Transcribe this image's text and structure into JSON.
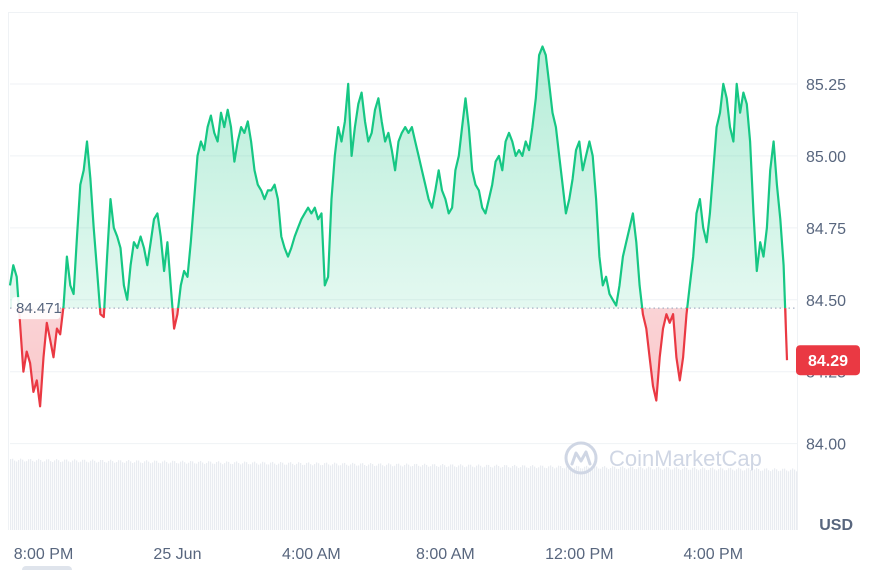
{
  "watermark": {
    "text": "CoinMarketCap",
    "icon": "coinmarketcap-logo-icon"
  },
  "chart_data": {
    "type": "line",
    "title": "",
    "xlabel": "",
    "ylabel": "",
    "unit_label": "USD",
    "yticks": [
      "84.00",
      "84.25",
      "84.50",
      "84.75",
      "85.00",
      "85.25"
    ],
    "ylim": [
      83.7,
      85.5
    ],
    "xlim": [
      0,
      23.5
    ],
    "x_tick_labels": [
      {
        "x": 1,
        "label": "8:00 PM"
      },
      {
        "x": 5,
        "label": "25 Jun"
      },
      {
        "x": 9,
        "label": "4:00 AM"
      },
      {
        "x": 13,
        "label": "8:00 AM"
      },
      {
        "x": 17,
        "label": "12:00 PM"
      },
      {
        "x": 21,
        "label": "4:00 PM"
      }
    ],
    "reference_price": 84.471,
    "reference_label": "84.471",
    "current_price": 84.29,
    "current_label": "84.29",
    "grid": true,
    "colors": {
      "up": "#16c784",
      "down": "#ea3943",
      "grid": "#eff2f5",
      "badge": "#ea3943"
    },
    "series": [
      {
        "values": [
          [
            0.0,
            84.55
          ],
          [
            0.1,
            84.62
          ],
          [
            0.2,
            84.58
          ],
          [
            0.3,
            84.42
          ],
          [
            0.4,
            84.25
          ],
          [
            0.5,
            84.32
          ],
          [
            0.6,
            84.28
          ],
          [
            0.7,
            84.18
          ],
          [
            0.8,
            84.22
          ],
          [
            0.9,
            84.13
          ],
          [
            1.0,
            84.3
          ],
          [
            1.1,
            84.42
          ],
          [
            1.2,
            84.36
          ],
          [
            1.3,
            84.3
          ],
          [
            1.4,
            84.4
          ],
          [
            1.5,
            84.38
          ],
          [
            1.6,
            84.48
          ],
          [
            1.7,
            84.65
          ],
          [
            1.8,
            84.55
          ],
          [
            1.9,
            84.52
          ],
          [
            2.0,
            84.72
          ],
          [
            2.1,
            84.9
          ],
          [
            2.2,
            84.95
          ],
          [
            2.3,
            85.05
          ],
          [
            2.4,
            84.92
          ],
          [
            2.5,
            84.75
          ],
          [
            2.6,
            84.6
          ],
          [
            2.7,
            84.45
          ],
          [
            2.8,
            84.44
          ],
          [
            2.9,
            84.65
          ],
          [
            3.0,
            84.85
          ],
          [
            3.1,
            84.75
          ],
          [
            3.2,
            84.72
          ],
          [
            3.3,
            84.68
          ],
          [
            3.4,
            84.55
          ],
          [
            3.5,
            84.5
          ],
          [
            3.6,
            84.62
          ],
          [
            3.7,
            84.7
          ],
          [
            3.8,
            84.68
          ],
          [
            3.9,
            84.72
          ],
          [
            4.0,
            84.68
          ],
          [
            4.1,
            84.62
          ],
          [
            4.2,
            84.7
          ],
          [
            4.3,
            84.78
          ],
          [
            4.4,
            84.8
          ],
          [
            4.5,
            84.72
          ],
          [
            4.6,
            84.6
          ],
          [
            4.7,
            84.7
          ],
          [
            4.8,
            84.55
          ],
          [
            4.9,
            84.4
          ],
          [
            5.0,
            84.45
          ],
          [
            5.1,
            84.55
          ],
          [
            5.2,
            84.6
          ],
          [
            5.3,
            84.58
          ],
          [
            5.4,
            84.7
          ],
          [
            5.5,
            84.85
          ],
          [
            5.6,
            85.0
          ],
          [
            5.7,
            85.05
          ],
          [
            5.8,
            85.02
          ],
          [
            5.9,
            85.1
          ],
          [
            6.0,
            85.14
          ],
          [
            6.1,
            85.08
          ],
          [
            6.2,
            85.05
          ],
          [
            6.3,
            85.15
          ],
          [
            6.4,
            85.1
          ],
          [
            6.5,
            85.16
          ],
          [
            6.6,
            85.1
          ],
          [
            6.7,
            84.98
          ],
          [
            6.8,
            85.05
          ],
          [
            6.9,
            85.1
          ],
          [
            7.0,
            85.08
          ],
          [
            7.1,
            85.12
          ],
          [
            7.2,
            85.05
          ],
          [
            7.3,
            84.95
          ],
          [
            7.4,
            84.9
          ],
          [
            7.5,
            84.88
          ],
          [
            7.6,
            84.85
          ],
          [
            7.7,
            84.88
          ],
          [
            7.8,
            84.88
          ],
          [
            7.9,
            84.9
          ],
          [
            8.0,
            84.85
          ],
          [
            8.1,
            84.72
          ],
          [
            8.2,
            84.68
          ],
          [
            8.3,
            84.65
          ],
          [
            8.4,
            84.68
          ],
          [
            8.5,
            84.72
          ],
          [
            8.6,
            84.75
          ],
          [
            8.7,
            84.78
          ],
          [
            8.8,
            84.8
          ],
          [
            8.9,
            84.82
          ],
          [
            9.0,
            84.8
          ],
          [
            9.1,
            84.82
          ],
          [
            9.2,
            84.78
          ],
          [
            9.3,
            84.8
          ],
          [
            9.4,
            84.55
          ],
          [
            9.5,
            84.58
          ],
          [
            9.6,
            84.85
          ],
          [
            9.7,
            85.0
          ],
          [
            9.8,
            85.1
          ],
          [
            9.9,
            85.05
          ],
          [
            10.0,
            85.12
          ],
          [
            10.1,
            85.25
          ],
          [
            10.2,
            85.0
          ],
          [
            10.3,
            85.1
          ],
          [
            10.4,
            85.18
          ],
          [
            10.5,
            85.22
          ],
          [
            10.6,
            85.12
          ],
          [
            10.7,
            85.05
          ],
          [
            10.8,
            85.08
          ],
          [
            10.9,
            85.16
          ],
          [
            11.0,
            85.2
          ],
          [
            11.1,
            85.12
          ],
          [
            11.2,
            85.05
          ],
          [
            11.3,
            85.08
          ],
          [
            11.4,
            85.02
          ],
          [
            11.5,
            84.95
          ],
          [
            11.6,
            85.05
          ],
          [
            11.7,
            85.08
          ],
          [
            11.8,
            85.1
          ],
          [
            11.9,
            85.08
          ],
          [
            12.0,
            85.1
          ],
          [
            12.1,
            85.05
          ],
          [
            12.2,
            85.0
          ],
          [
            12.3,
            84.95
          ],
          [
            12.4,
            84.9
          ],
          [
            12.5,
            84.85
          ],
          [
            12.6,
            84.82
          ],
          [
            12.7,
            84.88
          ],
          [
            12.8,
            84.95
          ],
          [
            12.9,
            84.88
          ],
          [
            13.0,
            84.85
          ],
          [
            13.1,
            84.8
          ],
          [
            13.2,
            84.82
          ],
          [
            13.3,
            84.95
          ],
          [
            13.4,
            85.0
          ],
          [
            13.5,
            85.1
          ],
          [
            13.6,
            85.2
          ],
          [
            13.7,
            85.1
          ],
          [
            13.8,
            84.95
          ],
          [
            13.9,
            84.9
          ],
          [
            14.0,
            84.88
          ],
          [
            14.1,
            84.82
          ],
          [
            14.2,
            84.8
          ],
          [
            14.3,
            84.85
          ],
          [
            14.4,
            84.9
          ],
          [
            14.5,
            84.98
          ],
          [
            14.6,
            85.0
          ],
          [
            14.7,
            84.95
          ],
          [
            14.8,
            85.05
          ],
          [
            14.9,
            85.08
          ],
          [
            15.0,
            85.05
          ],
          [
            15.1,
            85.0
          ],
          [
            15.2,
            85.02
          ],
          [
            15.3,
            85.0
          ],
          [
            15.4,
            85.05
          ],
          [
            15.5,
            85.02
          ],
          [
            15.6,
            85.1
          ],
          [
            15.7,
            85.2
          ],
          [
            15.8,
            85.35
          ],
          [
            15.9,
            85.38
          ],
          [
            16.0,
            85.35
          ],
          [
            16.1,
            85.25
          ],
          [
            16.2,
            85.15
          ],
          [
            16.3,
            85.1
          ],
          [
            16.4,
            85.0
          ],
          [
            16.5,
            84.9
          ],
          [
            16.6,
            84.8
          ],
          [
            16.7,
            84.85
          ],
          [
            16.8,
            84.92
          ],
          [
            16.9,
            85.02
          ],
          [
            17.0,
            85.05
          ],
          [
            17.1,
            84.95
          ],
          [
            17.2,
            85.0
          ],
          [
            17.3,
            85.05
          ],
          [
            17.4,
            85.0
          ],
          [
            17.5,
            84.85
          ],
          [
            17.6,
            84.65
          ],
          [
            17.7,
            84.55
          ],
          [
            17.8,
            84.58
          ],
          [
            17.9,
            84.52
          ],
          [
            18.0,
            84.5
          ],
          [
            18.1,
            84.48
          ],
          [
            18.2,
            84.55
          ],
          [
            18.3,
            84.65
          ],
          [
            18.4,
            84.7
          ],
          [
            18.5,
            84.75
          ],
          [
            18.6,
            84.8
          ],
          [
            18.7,
            84.7
          ],
          [
            18.8,
            84.55
          ],
          [
            18.9,
            84.45
          ],
          [
            19.0,
            84.4
          ],
          [
            19.1,
            84.3
          ],
          [
            19.2,
            84.2
          ],
          [
            19.3,
            84.15
          ],
          [
            19.4,
            84.3
          ],
          [
            19.5,
            84.4
          ],
          [
            19.6,
            84.45
          ],
          [
            19.7,
            84.42
          ],
          [
            19.8,
            84.45
          ],
          [
            19.9,
            84.3
          ],
          [
            20.0,
            84.22
          ],
          [
            20.1,
            84.3
          ],
          [
            20.2,
            84.45
          ],
          [
            20.3,
            84.55
          ],
          [
            20.4,
            84.65
          ],
          [
            20.5,
            84.8
          ],
          [
            20.6,
            84.85
          ],
          [
            20.7,
            84.75
          ],
          [
            20.8,
            84.7
          ],
          [
            20.9,
            84.8
          ],
          [
            21.0,
            84.95
          ],
          [
            21.1,
            85.1
          ],
          [
            21.2,
            85.15
          ],
          [
            21.3,
            85.25
          ],
          [
            21.4,
            85.2
          ],
          [
            21.5,
            85.1
          ],
          [
            21.6,
            85.05
          ],
          [
            21.7,
            85.25
          ],
          [
            21.8,
            85.15
          ],
          [
            21.9,
            85.22
          ],
          [
            22.0,
            85.18
          ],
          [
            22.1,
            85.05
          ],
          [
            22.2,
            84.8
          ],
          [
            22.3,
            84.6
          ],
          [
            22.4,
            84.7
          ],
          [
            22.5,
            84.65
          ],
          [
            22.6,
            84.75
          ],
          [
            22.7,
            84.95
          ],
          [
            22.8,
            85.05
          ],
          [
            22.9,
            84.9
          ],
          [
            23.0,
            84.78
          ],
          [
            23.1,
            84.62
          ],
          [
            23.2,
            84.29
          ]
        ]
      }
    ]
  }
}
